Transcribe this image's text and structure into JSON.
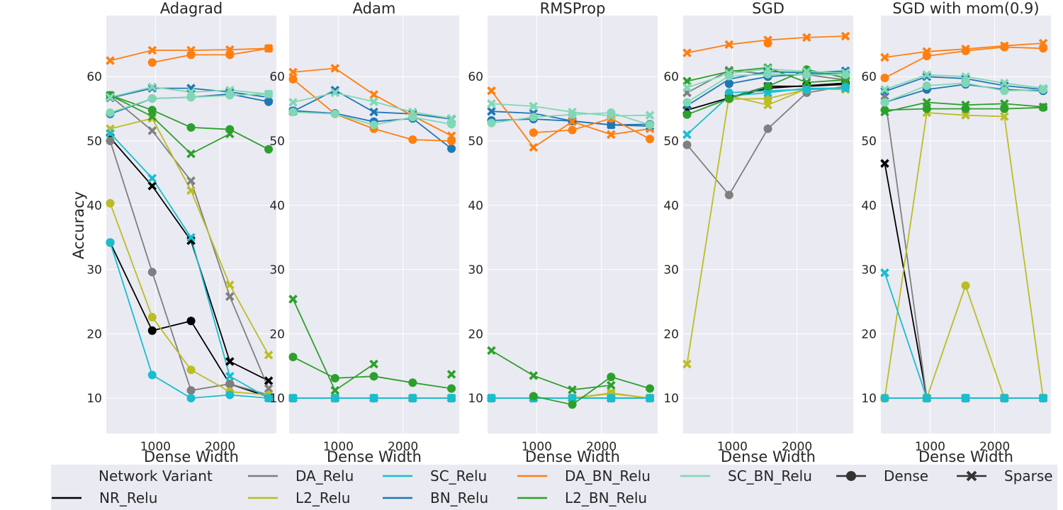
{
  "chart_data": {
    "type": "line",
    "ylabel": "Accuracy",
    "xlabel": "Dense Width",
    "ylim": [
      4.5,
      69.5
    ],
    "xlim": [
      240,
      2870
    ],
    "yticks": [
      10,
      20,
      30,
      40,
      50,
      60
    ],
    "xticks": [
      1000,
      2000
    ],
    "x": [
      300,
      950,
      1550,
      2150,
      2750
    ],
    "legend": {
      "title": "Network Variant",
      "variants": [
        {
          "name": "NR_Relu",
          "color": "#000000"
        },
        {
          "name": "DA_Relu",
          "color": "#7f7f7f"
        },
        {
          "name": "L2_Relu",
          "color": "#bcbd22"
        },
        {
          "name": "SC_Relu",
          "color": "#17becf"
        },
        {
          "name": "BN_Relu",
          "color": "#1f77b4"
        },
        {
          "name": "DA_BN_Relu",
          "color": "#ff7f0e"
        },
        {
          "name": "L2_BN_Relu",
          "color": "#2ca02c"
        },
        {
          "name": "SC_BN_Relu",
          "color": "#7fd8b5"
        }
      ],
      "markers": [
        {
          "name": "Dense",
          "marker": "circle"
        },
        {
          "name": "Sparse",
          "marker": "x"
        }
      ]
    },
    "panels": [
      {
        "title": "Adagrad",
        "series": [
          {
            "variant": "NR_Relu",
            "dense": [
              34.2,
              20.5,
              22.0,
              12.2,
              10.2
            ],
            "sparse": [
              50.5,
              43.0,
              34.5,
              15.7,
              12.7
            ]
          },
          {
            "variant": "DA_Relu",
            "dense": [
              50.0,
              29.6,
              11.2,
              12.2,
              10.5
            ],
            "sparse": [
              57.0,
              51.6,
              43.8,
              25.8,
              11.5
            ]
          },
          {
            "variant": "L2_Relu",
            "dense": [
              40.3,
              22.6,
              14.4,
              11.0,
              10.5
            ],
            "sparse": [
              51.9,
              53.5,
              42.3,
              27.6,
              16.7
            ]
          },
          {
            "variant": "SC_Relu",
            "dense": [
              34.2,
              13.6,
              10.0,
              10.5,
              10.0
            ],
            "sparse": [
              51.2,
              44.2,
              35.0,
              13.4,
              10.0
            ]
          },
          {
            "variant": "BN_Relu",
            "dense": [
              54.2,
              56.6,
              56.8,
              57.3,
              56.1
            ],
            "sparse": [
              56.7,
              58.2,
              58.2,
              57.6,
              56.8
            ]
          },
          {
            "variant": "DA_BN_Relu",
            "dense": [
              null,
              62.2,
              63.4,
              63.4,
              64.4
            ],
            "sparse": [
              62.5,
              64.1,
              64.1,
              64.2,
              64.4
            ]
          },
          {
            "variant": "L2_BN_Relu",
            "dense": [
              57.1,
              54.8,
              52.1,
              51.8,
              48.7
            ],
            "sparse": [
              57.1,
              53.8,
              48.0,
              51.1,
              null
            ]
          },
          {
            "variant": "SC_BN_Relu",
            "dense": [
              54.4,
              56.6,
              56.8,
              57.1,
              57.3
            ],
            "sparse": [
              56.8,
              58.4,
              57.6,
              57.9,
              57.3
            ]
          }
        ]
      },
      {
        "title": "Adam",
        "series": [
          {
            "variant": "NR_Relu",
            "dense": [
              10.0,
              10.0,
              10.0,
              10.0,
              10.0
            ],
            "sparse": [
              10.0,
              10.0,
              10.0,
              10.0,
              10.0
            ]
          },
          {
            "variant": "DA_Relu",
            "dense": [
              10.0,
              10.0,
              10.0,
              10.0,
              10.0
            ],
            "sparse": [
              10.0,
              10.0,
              10.0,
              10.0,
              10.0
            ]
          },
          {
            "variant": "L2_Relu",
            "dense": [
              10.0,
              10.0,
              10.0,
              10.0,
              10.0
            ],
            "sparse": [
              10.0,
              10.0,
              10.0,
              10.0,
              10.0
            ]
          },
          {
            "variant": "SC_Relu",
            "dense": [
              10.0,
              10.0,
              10.0,
              10.0,
              10.0
            ],
            "sparse": [
              10.0,
              10.0,
              10.0,
              10.0,
              10.0
            ]
          },
          {
            "variant": "BN_Relu",
            "dense": [
              54.7,
              54.3,
              53.0,
              53.5,
              48.8
            ],
            "sparse": [
              54.6,
              57.9,
              54.5,
              54.2,
              53.4
            ]
          },
          {
            "variant": "DA_BN_Relu",
            "dense": [
              59.6,
              54.2,
              51.9,
              50.2,
              50.0
            ],
            "sparse": [
              60.7,
              61.3,
              57.2,
              53.9,
              50.8
            ]
          },
          {
            "variant": "L2_BN_Relu",
            "dense": [
              16.4,
              13.1,
              13.4,
              12.4,
              11.5
            ],
            "sparse": [
              25.4,
              11.2,
              15.3,
              null,
              13.7
            ]
          },
          {
            "variant": "SC_BN_Relu",
            "dense": [
              54.5,
              54.2,
              52.5,
              53.7,
              52.6
            ],
            "sparse": [
              56.0,
              57.5,
              56.1,
              54.5,
              53.5
            ]
          }
        ]
      },
      {
        "title": "RMSProp",
        "series": [
          {
            "variant": "NR_Relu",
            "dense": [
              10.0,
              10.0,
              10.0,
              10.0,
              10.0
            ],
            "sparse": [
              10.0,
              10.0,
              10.0,
              10.0,
              10.0
            ]
          },
          {
            "variant": "DA_Relu",
            "dense": [
              10.0,
              10.0,
              10.0,
              10.0,
              10.0
            ],
            "sparse": [
              10.0,
              10.0,
              10.0,
              10.0,
              10.0
            ]
          },
          {
            "variant": "L2_Relu",
            "dense": [
              10.0,
              10.0,
              10.0,
              10.7,
              10.0
            ],
            "sparse": [
              10.0,
              10.0,
              10.0,
              10.8,
              10.0
            ]
          },
          {
            "variant": "SC_Relu",
            "dense": [
              10.0,
              10.0,
              10.0,
              10.0,
              10.0
            ],
            "sparse": [
              10.0,
              10.0,
              10.0,
              10.0,
              10.0
            ]
          },
          {
            "variant": "BN_Relu",
            "dense": [
              53.2,
              53.4,
              53.1,
              52.5,
              52.6
            ],
            "sparse": [
              54.6,
              54.3,
              53.1,
              52.5,
              52.3
            ]
          },
          {
            "variant": "DA_BN_Relu",
            "dense": [
              null,
              51.3,
              51.7,
              53.5,
              50.3
            ],
            "sparse": [
              57.8,
              49.0,
              53.0,
              51.0,
              51.9
            ]
          },
          {
            "variant": "L2_BN_Relu",
            "dense": [
              null,
              10.3,
              9.0,
              13.3,
              11.5
            ],
            "sparse": [
              17.4,
              13.5,
              11.3,
              12.0,
              null
            ]
          },
          {
            "variant": "SC_BN_Relu",
            "dense": [
              52.8,
              53.7,
              54.1,
              54.4,
              52.5
            ],
            "sparse": [
              55.8,
              55.4,
              54.5,
              53.9,
              54.0
            ]
          }
        ]
      },
      {
        "title": "SGD",
        "series": [
          {
            "variant": "NR_Relu",
            "dense": [
              null,
              56.7,
              58.2,
              58.6,
              59.0
            ],
            "sparse": [
              54.8,
              56.7,
              58.5,
              58.5,
              58.8
            ]
          },
          {
            "variant": "DA_Relu",
            "dense": [
              49.4,
              41.6,
              51.9,
              57.5,
              58.5
            ],
            "sparse": [
              57.5,
              61.0,
              60.4,
              60.3,
              59.5
            ]
          },
          {
            "variant": "L2_Relu",
            "dense": [
              null,
              56.5,
              56.6,
              58.0,
              58.3
            ],
            "sparse": [
              15.3,
              57.0,
              55.6,
              58.1,
              58.0
            ]
          },
          {
            "variant": "SC_Relu",
            "dense": [
              null,
              57.5,
              57.8,
              58.0,
              58.3
            ],
            "sparse": [
              51.0,
              57.0,
              57.5,
              58.2,
              58.2
            ]
          },
          {
            "variant": "BN_Relu",
            "dense": [
              null,
              58.9,
              60.0,
              60.4,
              60.6
            ],
            "sparse": [
              55.5,
              59.6,
              60.8,
              60.6,
              60.9
            ]
          },
          {
            "variant": "DA_BN_Relu",
            "dense": [
              null,
              null,
              65.2,
              null,
              null
            ],
            "sparse": [
              63.7,
              65.0,
              65.7,
              66.1,
              66.3
            ]
          },
          {
            "variant": "L2_BN_Relu",
            "dense": [
              54.1,
              56.6,
              58.5,
              61.1,
              59.8
            ],
            "sparse": [
              59.3,
              60.8,
              61.4,
              59.1,
              59.5
            ]
          },
          {
            "variant": "SC_BN_Relu",
            "dense": [
              56.0,
              60.1,
              60.4,
              60.3,
              60.3
            ],
            "sparse": [
              58.3,
              60.5,
              61.2,
              60.8,
              60.6
            ]
          }
        ]
      },
      {
        "title": "SGD with mom(0.9)",
        "series": [
          {
            "variant": "NR_Relu",
            "dense": [
              10.0,
              10.0,
              10.0,
              10.0,
              10.0
            ],
            "sparse": [
              46.5,
              10.0,
              10.0,
              10.0,
              10.0
            ]
          },
          {
            "variant": "DA_Relu",
            "dense": [
              10.0,
              10.0,
              10.0,
              10.0,
              10.0
            ],
            "sparse": [
              57.0,
              10.0,
              10.0,
              10.0,
              10.0
            ]
          },
          {
            "variant": "L2_Relu",
            "dense": [
              10.0,
              10.0,
              27.5,
              10.0,
              10.0
            ],
            "sparse": [
              10.0,
              54.4,
              54.0,
              53.8,
              10.0
            ]
          },
          {
            "variant": "SC_Relu",
            "dense": [
              10.0,
              10.0,
              10.0,
              10.0,
              10.0
            ],
            "sparse": [
              29.5,
              10.0,
              10.0,
              10.0,
              10.0
            ]
          },
          {
            "variant": "BN_Relu",
            "dense": [
              56.0,
              58.0,
              58.8,
              58.0,
              57.8
            ],
            "sparse": [
              57.7,
              60.0,
              59.7,
              58.6,
              58.0
            ]
          },
          {
            "variant": "DA_BN_Relu",
            "dense": [
              59.8,
              63.2,
              64.0,
              64.6,
              64.4
            ],
            "sparse": [
              63.0,
              63.9,
              64.3,
              64.8,
              65.2
            ]
          },
          {
            "variant": "L2_BN_Relu",
            "dense": [
              54.8,
              55.0,
              55.0,
              55.0,
              55.2
            ],
            "sparse": [
              54.5,
              56.0,
              55.6,
              55.8,
              55.3
            ]
          },
          {
            "variant": "SC_BN_Relu",
            "dense": [
              56.0,
              58.6,
              59.0,
              57.8,
              58.0
            ],
            "sparse": [
              58.0,
              60.3,
              60.0,
              59.0,
              58.2
            ]
          }
        ]
      }
    ]
  }
}
